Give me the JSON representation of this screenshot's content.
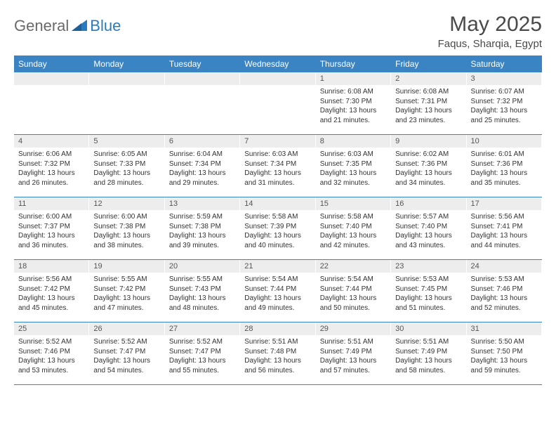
{
  "brand": {
    "part1": "General",
    "part2": "Blue"
  },
  "title": "May 2025",
  "location": "Faqus, Sharqia, Egypt",
  "colors": {
    "header_bg": "#3b84c4",
    "daynum_bg": "#ededed",
    "text": "#333333",
    "title": "#4a4a4a"
  },
  "weekdays": [
    "Sunday",
    "Monday",
    "Tuesday",
    "Wednesday",
    "Thursday",
    "Friday",
    "Saturday"
  ],
  "weeks": [
    [
      null,
      null,
      null,
      null,
      {
        "n": "1",
        "sunrise": "6:08 AM",
        "sunset": "7:30 PM",
        "dl1": "Daylight: 13 hours",
        "dl2": "and 21 minutes."
      },
      {
        "n": "2",
        "sunrise": "6:08 AM",
        "sunset": "7:31 PM",
        "dl1": "Daylight: 13 hours",
        "dl2": "and 23 minutes."
      },
      {
        "n": "3",
        "sunrise": "6:07 AM",
        "sunset": "7:32 PM",
        "dl1": "Daylight: 13 hours",
        "dl2": "and 25 minutes."
      }
    ],
    [
      {
        "n": "4",
        "sunrise": "6:06 AM",
        "sunset": "7:32 PM",
        "dl1": "Daylight: 13 hours",
        "dl2": "and 26 minutes."
      },
      {
        "n": "5",
        "sunrise": "6:05 AM",
        "sunset": "7:33 PM",
        "dl1": "Daylight: 13 hours",
        "dl2": "and 28 minutes."
      },
      {
        "n": "6",
        "sunrise": "6:04 AM",
        "sunset": "7:34 PM",
        "dl1": "Daylight: 13 hours",
        "dl2": "and 29 minutes."
      },
      {
        "n": "7",
        "sunrise": "6:03 AM",
        "sunset": "7:34 PM",
        "dl1": "Daylight: 13 hours",
        "dl2": "and 31 minutes."
      },
      {
        "n": "8",
        "sunrise": "6:03 AM",
        "sunset": "7:35 PM",
        "dl1": "Daylight: 13 hours",
        "dl2": "and 32 minutes."
      },
      {
        "n": "9",
        "sunrise": "6:02 AM",
        "sunset": "7:36 PM",
        "dl1": "Daylight: 13 hours",
        "dl2": "and 34 minutes."
      },
      {
        "n": "10",
        "sunrise": "6:01 AM",
        "sunset": "7:36 PM",
        "dl1": "Daylight: 13 hours",
        "dl2": "and 35 minutes."
      }
    ],
    [
      {
        "n": "11",
        "sunrise": "6:00 AM",
        "sunset": "7:37 PM",
        "dl1": "Daylight: 13 hours",
        "dl2": "and 36 minutes."
      },
      {
        "n": "12",
        "sunrise": "6:00 AM",
        "sunset": "7:38 PM",
        "dl1": "Daylight: 13 hours",
        "dl2": "and 38 minutes."
      },
      {
        "n": "13",
        "sunrise": "5:59 AM",
        "sunset": "7:38 PM",
        "dl1": "Daylight: 13 hours",
        "dl2": "and 39 minutes."
      },
      {
        "n": "14",
        "sunrise": "5:58 AM",
        "sunset": "7:39 PM",
        "dl1": "Daylight: 13 hours",
        "dl2": "and 40 minutes."
      },
      {
        "n": "15",
        "sunrise": "5:58 AM",
        "sunset": "7:40 PM",
        "dl1": "Daylight: 13 hours",
        "dl2": "and 42 minutes."
      },
      {
        "n": "16",
        "sunrise": "5:57 AM",
        "sunset": "7:40 PM",
        "dl1": "Daylight: 13 hours",
        "dl2": "and 43 minutes."
      },
      {
        "n": "17",
        "sunrise": "5:56 AM",
        "sunset": "7:41 PM",
        "dl1": "Daylight: 13 hours",
        "dl2": "and 44 minutes."
      }
    ],
    [
      {
        "n": "18",
        "sunrise": "5:56 AM",
        "sunset": "7:42 PM",
        "dl1": "Daylight: 13 hours",
        "dl2": "and 45 minutes."
      },
      {
        "n": "19",
        "sunrise": "5:55 AM",
        "sunset": "7:42 PM",
        "dl1": "Daylight: 13 hours",
        "dl2": "and 47 minutes."
      },
      {
        "n": "20",
        "sunrise": "5:55 AM",
        "sunset": "7:43 PM",
        "dl1": "Daylight: 13 hours",
        "dl2": "and 48 minutes."
      },
      {
        "n": "21",
        "sunrise": "5:54 AM",
        "sunset": "7:44 PM",
        "dl1": "Daylight: 13 hours",
        "dl2": "and 49 minutes."
      },
      {
        "n": "22",
        "sunrise": "5:54 AM",
        "sunset": "7:44 PM",
        "dl1": "Daylight: 13 hours",
        "dl2": "and 50 minutes."
      },
      {
        "n": "23",
        "sunrise": "5:53 AM",
        "sunset": "7:45 PM",
        "dl1": "Daylight: 13 hours",
        "dl2": "and 51 minutes."
      },
      {
        "n": "24",
        "sunrise": "5:53 AM",
        "sunset": "7:46 PM",
        "dl1": "Daylight: 13 hours",
        "dl2": "and 52 minutes."
      }
    ],
    [
      {
        "n": "25",
        "sunrise": "5:52 AM",
        "sunset": "7:46 PM",
        "dl1": "Daylight: 13 hours",
        "dl2": "and 53 minutes."
      },
      {
        "n": "26",
        "sunrise": "5:52 AM",
        "sunset": "7:47 PM",
        "dl1": "Daylight: 13 hours",
        "dl2": "and 54 minutes."
      },
      {
        "n": "27",
        "sunrise": "5:52 AM",
        "sunset": "7:47 PM",
        "dl1": "Daylight: 13 hours",
        "dl2": "and 55 minutes."
      },
      {
        "n": "28",
        "sunrise": "5:51 AM",
        "sunset": "7:48 PM",
        "dl1": "Daylight: 13 hours",
        "dl2": "and 56 minutes."
      },
      {
        "n": "29",
        "sunrise": "5:51 AM",
        "sunset": "7:49 PM",
        "dl1": "Daylight: 13 hours",
        "dl2": "and 57 minutes."
      },
      {
        "n": "30",
        "sunrise": "5:51 AM",
        "sunset": "7:49 PM",
        "dl1": "Daylight: 13 hours",
        "dl2": "and 58 minutes."
      },
      {
        "n": "31",
        "sunrise": "5:50 AM",
        "sunset": "7:50 PM",
        "dl1": "Daylight: 13 hours",
        "dl2": "and 59 minutes."
      }
    ]
  ],
  "labels": {
    "sunrise_prefix": "Sunrise: ",
    "sunset_prefix": "Sunset: "
  }
}
